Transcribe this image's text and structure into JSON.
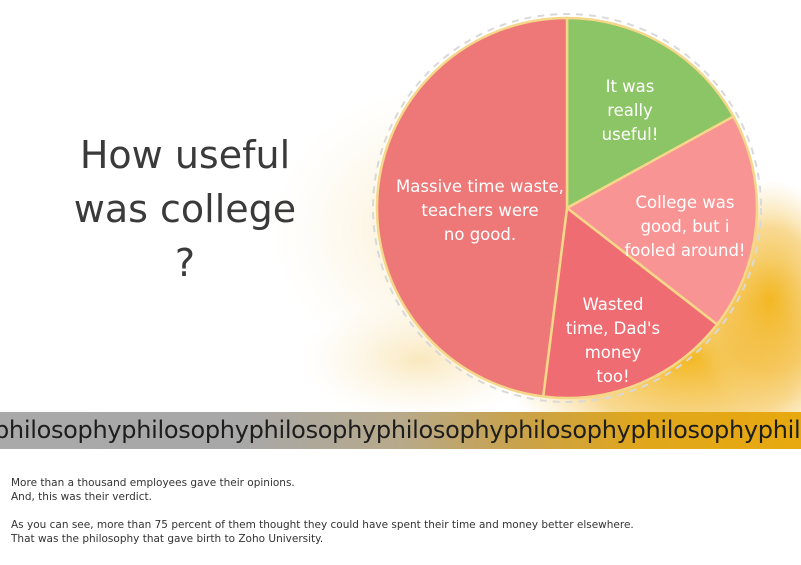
{
  "title_lines": [
    "How useful",
    "was college",
    "?"
  ],
  "chart_data": {
    "type": "pie",
    "title": "How useful was college ?",
    "start_angle_deg": 0,
    "slices": [
      {
        "label_lines": [
          "It was",
          "really",
          "useful!"
        ],
        "value": 17,
        "color": "#8cc565"
      },
      {
        "label_lines": [
          "College was",
          "good, but i",
          "fooled around!"
        ],
        "value": 18.5,
        "color": "#f99494"
      },
      {
        "label_lines": [
          "Wasted",
          "time, Dad's",
          "money",
          "too!"
        ],
        "value": 16.5,
        "color": "#ef6d72"
      },
      {
        "label_lines": [
          "Massive time waste,",
          "teachers were",
          "no good."
        ],
        "value": 48,
        "color": "#ee7878"
      }
    ]
  },
  "ticker_text": "philosophyphilosophyphilosophyphilosophyphilosophyphilosophyphilosophy",
  "paragraphs": [
    [
      "More than a thousand employees gave their opinions.",
      "And, this was their verdict."
    ],
    [
      "As you can see, more than 75 percent of them thought they could have spent their time and money better elsewhere.",
      "That was the philosophy that gave birth to Zoho University."
    ]
  ],
  "colors": {
    "accent_yellow": "#f2b51b",
    "slice_border": "#f5d78a",
    "title": "#3a3a3a"
  }
}
